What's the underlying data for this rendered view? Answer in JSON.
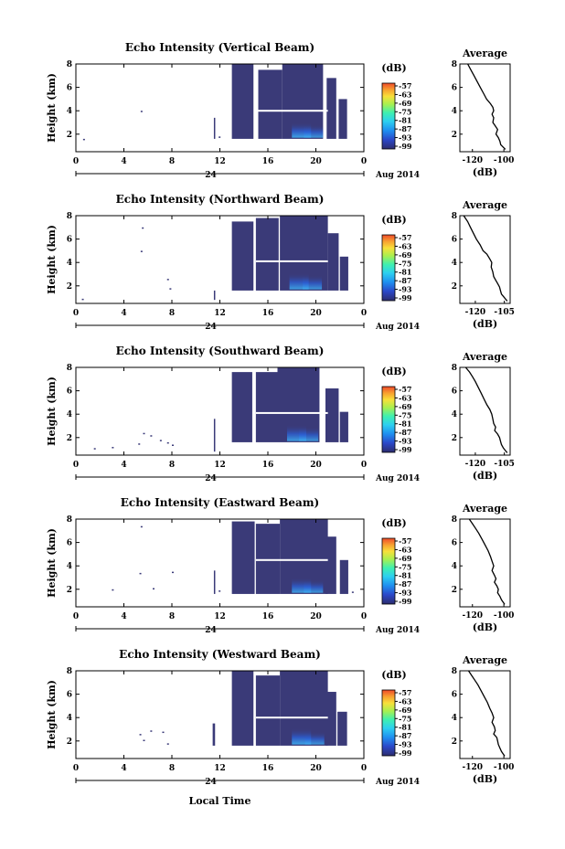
{
  "chart_data": [
    {
      "type": "heatmap",
      "title": "Echo Intensity (Vertical Beam)",
      "ylabel": "Height (km)",
      "x_ticks": [
        "0",
        "4",
        "8",
        "12",
        "16",
        "20",
        "0"
      ],
      "y_ticks": [
        "2",
        "4",
        "6",
        "8"
      ],
      "date_label": "24",
      "date_right": "Aug 2014",
      "xlim": [
        0,
        24
      ],
      "ylim": [
        0.5,
        8
      ],
      "colorbar": {
        "unit": "(dB)",
        "ticks": [
          "-57",
          "-63",
          "-69",
          "-75",
          "-81",
          "-87",
          "-93",
          "-99"
        ]
      },
      "profile": {
        "title": "Average",
        "xlabel": "(dB)",
        "x_ticks": [
          "-120",
          "-100"
        ],
        "y_ticks": [
          "2",
          "4",
          "6",
          "8"
        ],
        "xlim": [
          -128,
          -96
        ],
        "ylim": [
          0.5,
          8
        ],
        "x": [
          -123,
          -121,
          -119,
          -117,
          -115,
          -113,
          -111,
          -108.5,
          -107,
          -106.5,
          -107.5,
          -106.5,
          -107,
          -105.5,
          -104,
          -105,
          -103.5,
          -102.5,
          -102,
          -100.5,
          -99
        ],
        "y": [
          8.0,
          7.5,
          7.0,
          6.5,
          6.0,
          5.5,
          5.0,
          4.6,
          4.3,
          4.0,
          3.7,
          3.4,
          3.0,
          2.7,
          2.4,
          2.0,
          1.7,
          1.4,
          1.1,
          0.9,
          0.7
        ]
      },
      "echo_patches": [
        {
          "t0": 13.0,
          "t1": 14.8,
          "z0": 1.6,
          "z1": 8.0
        },
        {
          "t0": 15.2,
          "t1": 17.2,
          "z0": 1.6,
          "z1": 7.5
        },
        {
          "t0": 17.2,
          "t1": 20.6,
          "z0": 1.6,
          "z1": 8.0
        },
        {
          "t0": 20.9,
          "t1": 21.7,
          "z0": 1.6,
          "z1": 6.8
        },
        {
          "t0": 21.9,
          "t1": 22.6,
          "z0": 1.6,
          "z1": 5.0
        },
        {
          "t0": 11.5,
          "t1": 11.6,
          "z0": 1.6,
          "z1": 3.4
        }
      ],
      "gap_height": 4.0,
      "cores": [
        {
          "t": 18.8,
          "z": 1.7,
          "dz": 1.3,
          "level": 0.55
        },
        {
          "t": 19.8,
          "z": 1.7,
          "dz": 1.1,
          "level": 0.45
        }
      ],
      "specks": [
        {
          "t": 0.6,
          "z": 1.6
        },
        {
          "t": 5.4,
          "z": 4.0
        },
        {
          "t": 11.9,
          "z": 1.8
        }
      ]
    },
    {
      "type": "heatmap",
      "title": "Echo Intensity (Northward Beam)",
      "ylabel": "Height (km)",
      "x_ticks": [
        "0",
        "4",
        "8",
        "12",
        "16",
        "20",
        "0"
      ],
      "y_ticks": [
        "2",
        "4",
        "6",
        "8"
      ],
      "date_label": "24",
      "date_right": "Aug 2014",
      "xlim": [
        0,
        24
      ],
      "ylim": [
        0.5,
        8
      ],
      "colorbar": {
        "unit": "(dB)",
        "ticks": [
          "-57",
          "-63",
          "-69",
          "-75",
          "-81",
          "-87",
          "-93",
          "-99"
        ]
      },
      "profile": {
        "title": "Average",
        "xlabel": "(dB)",
        "x_ticks": [
          "-120",
          "-105"
        ],
        "y_ticks": [
          "2",
          "4",
          "6",
          "8"
        ],
        "xlim": [
          -128,
          -102
        ],
        "ylim": [
          0.5,
          8
        ],
        "x": [
          -126,
          -124,
          -122.5,
          -121,
          -119.5,
          -117.5,
          -116,
          -114,
          -112.5,
          -111.5,
          -111.8,
          -111,
          -110.5,
          -109.5,
          -108.5,
          -107.5,
          -107,
          -106.5,
          -105.5,
          -104.5,
          -103.5
        ],
        "y": [
          8.0,
          7.5,
          7.0,
          6.5,
          6.0,
          5.5,
          5.0,
          4.7,
          4.3,
          4.0,
          3.6,
          3.2,
          2.8,
          2.5,
          2.2,
          1.9,
          1.6,
          1.3,
          1.1,
          0.9,
          0.7
        ]
      },
      "echo_patches": [
        {
          "t0": 13.0,
          "t1": 14.8,
          "z0": 1.6,
          "z1": 7.5
        },
        {
          "t0": 15.0,
          "t1": 16.9,
          "z0": 1.6,
          "z1": 7.8
        },
        {
          "t0": 17.0,
          "t1": 21.0,
          "z0": 1.6,
          "z1": 8.0
        },
        {
          "t0": 21.0,
          "t1": 21.9,
          "z0": 1.6,
          "z1": 6.5
        },
        {
          "t0": 22.0,
          "t1": 22.7,
          "z0": 1.6,
          "z1": 4.5
        },
        {
          "t0": 11.5,
          "t1": 11.6,
          "z0": 0.8,
          "z1": 1.6
        }
      ],
      "gap_height": 4.1,
      "cores": [
        {
          "t": 18.6,
          "z": 1.7,
          "dz": 1.4,
          "level": 0.5
        },
        {
          "t": 19.7,
          "z": 1.7,
          "dz": 1.2,
          "level": 0.45
        }
      ],
      "specks": [
        {
          "t": 5.5,
          "z": 7.0
        },
        {
          "t": 5.4,
          "z": 5.0
        },
        {
          "t": 7.6,
          "z": 2.6
        },
        {
          "t": 7.8,
          "z": 1.8
        },
        {
          "t": 0.5,
          "z": 0.9
        }
      ]
    },
    {
      "type": "heatmap",
      "title": "Echo Intensity (Southward Beam)",
      "ylabel": "Height (km)",
      "x_ticks": [
        "0",
        "4",
        "8",
        "12",
        "16",
        "20",
        "0"
      ],
      "y_ticks": [
        "2",
        "4",
        "6",
        "8"
      ],
      "date_label": "24",
      "date_right": "Aug 2014",
      "xlim": [
        0,
        24
      ],
      "ylim": [
        0.5,
        8
      ],
      "colorbar": {
        "unit": "(dB)",
        "ticks": [
          "-57",
          "-63",
          "-69",
          "-75",
          "-81",
          "-87",
          "-93",
          "-99"
        ]
      },
      "profile": {
        "title": "Average",
        "xlabel": "(dB)",
        "x_ticks": [
          "-120",
          "-105"
        ],
        "y_ticks": [
          "2",
          "4",
          "6",
          "8"
        ],
        "xlim": [
          -128,
          -102
        ],
        "ylim": [
          0.5,
          8
        ],
        "x": [
          -125,
          -123,
          -121.5,
          -120,
          -118.5,
          -117,
          -115.5,
          -114,
          -112.5,
          -111.5,
          -111,
          -110.5,
          -109.5,
          -110,
          -108.5,
          -107.5,
          -107,
          -106.5,
          -105.5,
          -104.5,
          -103.5
        ],
        "y": [
          8.0,
          7.6,
          7.2,
          6.8,
          6.3,
          5.8,
          5.3,
          4.8,
          4.4,
          4.0,
          3.6,
          3.2,
          2.9,
          2.6,
          2.3,
          2.0,
          1.7,
          1.4,
          1.1,
          0.9,
          0.7
        ]
      },
      "echo_patches": [
        {
          "t0": 13.0,
          "t1": 14.7,
          "z0": 1.6,
          "z1": 7.6
        },
        {
          "t0": 15.0,
          "t1": 16.8,
          "z0": 1.6,
          "z1": 7.6
        },
        {
          "t0": 16.8,
          "t1": 20.3,
          "z0": 1.6,
          "z1": 8.0
        },
        {
          "t0": 20.8,
          "t1": 21.9,
          "z0": 1.6,
          "z1": 6.2
        },
        {
          "t0": 22.0,
          "t1": 22.7,
          "z0": 1.6,
          "z1": 4.2
        },
        {
          "t0": 11.5,
          "t1": 11.6,
          "z0": 0.8,
          "z1": 3.6
        }
      ],
      "gap_height": 4.1,
      "cores": [
        {
          "t": 18.4,
          "z": 1.7,
          "dz": 1.4,
          "level": 0.5
        },
        {
          "t": 19.4,
          "z": 1.7,
          "dz": 1.2,
          "level": 0.45
        }
      ],
      "specks": [
        {
          "t": 5.6,
          "z": 2.4
        },
        {
          "t": 6.2,
          "z": 2.2
        },
        {
          "t": 7.0,
          "z": 1.8
        },
        {
          "t": 7.6,
          "z": 1.6
        },
        {
          "t": 3.0,
          "z": 1.2
        },
        {
          "t": 1.5,
          "z": 1.1
        },
        {
          "t": 5.2,
          "z": 1.5
        },
        {
          "t": 8.0,
          "z": 1.4
        }
      ]
    },
    {
      "type": "heatmap",
      "title": "Echo Intensity (Eastward Beam)",
      "ylabel": "Height (km)",
      "x_ticks": [
        "0",
        "4",
        "8",
        "12",
        "16",
        "20",
        "0"
      ],
      "y_ticks": [
        "2",
        "4",
        "6",
        "8"
      ],
      "date_label": "24",
      "date_right": "Aug 2014",
      "xlim": [
        0,
        24
      ],
      "ylim": [
        0.5,
        8
      ],
      "colorbar": {
        "unit": "(dB)",
        "ticks": [
          "-57",
          "-63",
          "-69",
          "-75",
          "-81",
          "-87",
          "-93",
          "-99"
        ]
      },
      "profile": {
        "title": "Average",
        "xlabel": "(dB)",
        "x_ticks": [
          "-120",
          "-100"
        ],
        "y_ticks": [
          "2",
          "4",
          "6",
          "8"
        ],
        "xlim": [
          -128,
          -96
        ],
        "ylim": [
          0.5,
          8
        ],
        "x": [
          -122,
          -120,
          -118,
          -116,
          -114,
          -112,
          -110,
          -108.5,
          -107.5,
          -106.5,
          -107.5,
          -106,
          -105,
          -106,
          -104.5,
          -103.5,
          -104,
          -102.5,
          -101.5,
          -100.5,
          -99.5
        ],
        "y": [
          8.0,
          7.6,
          7.2,
          6.8,
          6.3,
          5.8,
          5.3,
          4.8,
          4.4,
          4.0,
          3.6,
          3.2,
          2.9,
          2.6,
          2.3,
          2.0,
          1.7,
          1.4,
          1.1,
          0.9,
          0.7
        ]
      },
      "echo_patches": [
        {
          "t0": 13.0,
          "t1": 14.9,
          "z0": 1.6,
          "z1": 7.8
        },
        {
          "t0": 15.0,
          "t1": 17.0,
          "z0": 1.6,
          "z1": 7.6
        },
        {
          "t0": 17.0,
          "t1": 21.0,
          "z0": 1.6,
          "z1": 8.0
        },
        {
          "t0": 20.8,
          "t1": 21.7,
          "z0": 1.6,
          "z1": 6.5
        },
        {
          "t0": 22.0,
          "t1": 22.7,
          "z0": 1.6,
          "z1": 4.5
        },
        {
          "t0": 11.5,
          "t1": 11.6,
          "z0": 1.6,
          "z1": 3.6
        }
      ],
      "gap_height": 4.5,
      "cores": [
        {
          "t": 18.8,
          "z": 1.7,
          "dz": 1.3,
          "level": 0.5
        },
        {
          "t": 19.8,
          "z": 1.7,
          "dz": 1.1,
          "level": 0.45
        }
      ],
      "specks": [
        {
          "t": 5.4,
          "z": 7.4
        },
        {
          "t": 5.3,
          "z": 3.4
        },
        {
          "t": 8.0,
          "z": 3.5
        },
        {
          "t": 6.4,
          "z": 2.1
        },
        {
          "t": 3.0,
          "z": 2.0
        },
        {
          "t": 11.9,
          "z": 1.9
        },
        {
          "t": 23.0,
          "z": 1.8
        }
      ]
    },
    {
      "type": "heatmap",
      "title": "Echo Intensity (Westward Beam)",
      "ylabel": "Height (km)",
      "x_ticks": [
        "0",
        "4",
        "8",
        "12",
        "16",
        "20",
        "0"
      ],
      "y_ticks": [
        "2",
        "4",
        "6",
        "8"
      ],
      "date_label": "24",
      "date_right": "Aug 2014",
      "xlim": [
        0,
        24
      ],
      "ylim": [
        0.5,
        8
      ],
      "colorbar": {
        "unit": "(dB)",
        "ticks": [
          "-57",
          "-63",
          "-69",
          "-75",
          "-81",
          "-87",
          "-93",
          "-99"
        ]
      },
      "profile": {
        "title": "Average",
        "xlabel": "(dB)",
        "x_ticks": [
          "-120",
          "-100"
        ],
        "y_ticks": [
          "2",
          "4",
          "6",
          "8"
        ],
        "xlim": [
          -128,
          -96
        ],
        "ylim": [
          0.5,
          8
        ],
        "x": [
          -122.5,
          -120.5,
          -118.5,
          -116.5,
          -114.5,
          -112.5,
          -110.5,
          -109,
          -107.5,
          -106.5,
          -107.5,
          -106,
          -105.5,
          -106.5,
          -104.5,
          -104,
          -103.5,
          -102.5,
          -101.5,
          -100.5,
          -99.5
        ],
        "y": [
          8.0,
          7.6,
          7.2,
          6.8,
          6.3,
          5.8,
          5.3,
          4.8,
          4.4,
          4.0,
          3.6,
          3.2,
          2.9,
          2.6,
          2.3,
          2.0,
          1.7,
          1.4,
          1.1,
          0.9,
          0.7
        ]
      },
      "echo_patches": [
        {
          "t0": 13.0,
          "t1": 14.8,
          "z0": 1.6,
          "z1": 8.0
        },
        {
          "t0": 15.0,
          "t1": 17.0,
          "z0": 1.6,
          "z1": 7.6
        },
        {
          "t0": 17.0,
          "t1": 21.0,
          "z0": 1.6,
          "z1": 8.0
        },
        {
          "t0": 20.8,
          "t1": 21.7,
          "z0": 1.6,
          "z1": 6.2
        },
        {
          "t0": 21.8,
          "t1": 22.6,
          "z0": 1.6,
          "z1": 4.5
        },
        {
          "t0": 11.4,
          "t1": 11.6,
          "z0": 1.6,
          "z1": 3.5
        }
      ],
      "gap_height": 4.0,
      "cores": [
        {
          "t": 18.8,
          "z": 1.7,
          "dz": 1.4,
          "level": 0.55
        },
        {
          "t": 19.9,
          "z": 1.7,
          "dz": 1.1,
          "level": 0.45
        }
      ],
      "specks": [
        {
          "t": 5.3,
          "z": 2.6
        },
        {
          "t": 6.2,
          "z": 2.9
        },
        {
          "t": 7.2,
          "z": 2.8
        },
        {
          "t": 5.6,
          "z": 2.1
        },
        {
          "t": 7.6,
          "z": 1.8
        }
      ]
    }
  ],
  "xlabel": "Local Time",
  "colors": {
    "background": "#ffffff",
    "echo_base": "#3a3a78",
    "colormap": [
      "#2c2c6e",
      "#2b47c8",
      "#1f8ff0",
      "#2dd0f0",
      "#3ff0b0",
      "#a8f050",
      "#f8e03a",
      "#f8a030",
      "#ee4a2a"
    ]
  }
}
